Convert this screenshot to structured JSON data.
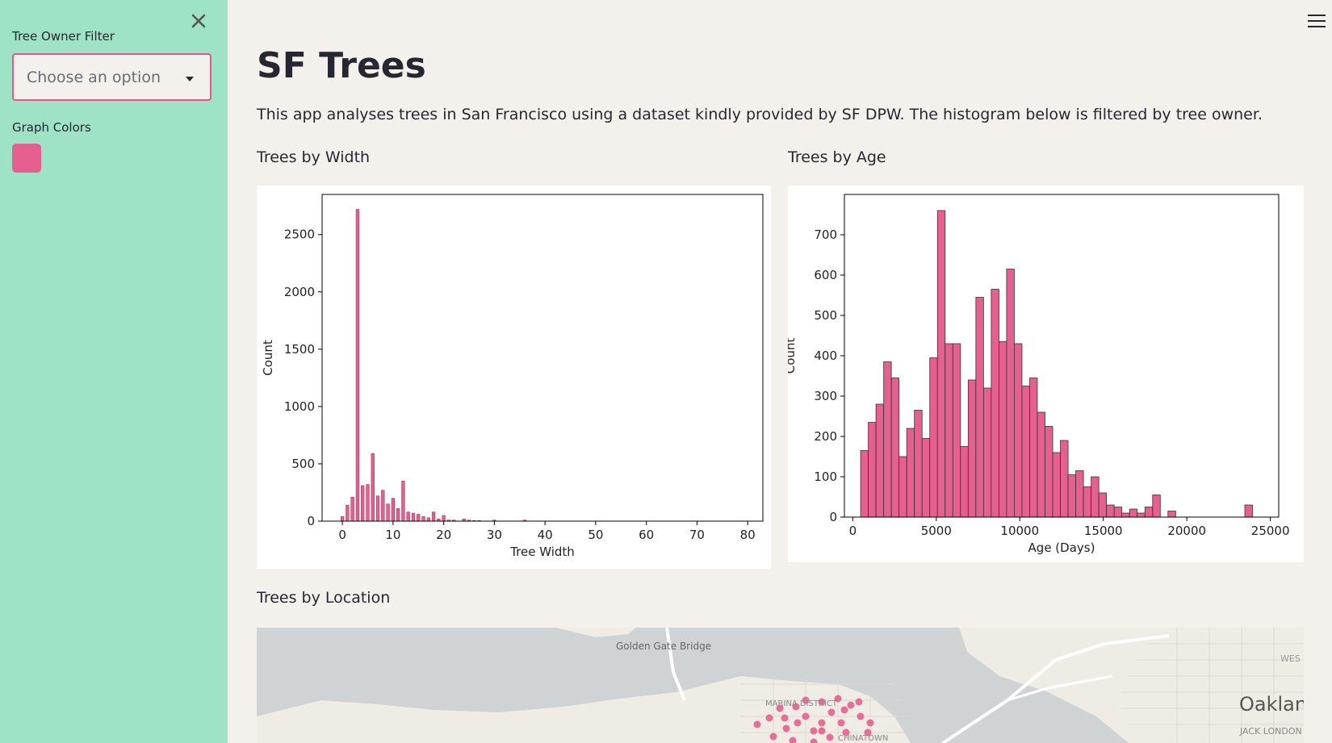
{
  "sidebar": {
    "filter_label": "Tree Owner Filter",
    "filter_placeholder": "Choose an option",
    "colors_label": "Graph Colors",
    "selected_color": "#e5608e",
    "sidebar_color": "#9ee3c6"
  },
  "main": {
    "title": "SF Trees",
    "description": "This app analyses trees in San Francisco using a dataset kindly provided by SF DPW. The histogram below is filtered by tree owner.",
    "width_heading": "Trees by Width",
    "age_heading": "Trees by Age",
    "location_heading": "Trees by Location"
  },
  "map": {
    "labels": [
      "Golden Gate Bridge",
      "MARINA DISTRICT",
      "CHINATOWN",
      "Oaklan",
      "JACK LONDON",
      "WES"
    ],
    "point_color": "#e5608e"
  },
  "chart_data": [
    {
      "type": "bar",
      "title": "",
      "xlabel": "Tree Width",
      "ylabel": "Count",
      "xlim": [
        -4,
        83
      ],
      "ylim": [
        0,
        2850
      ],
      "xticks": [
        0,
        10,
        20,
        30,
        40,
        50,
        60,
        70,
        80
      ],
      "yticks": [
        0,
        500,
        1000,
        1500,
        2000,
        2500
      ],
      "bar_width": 0.6,
      "color": "#e5608e",
      "x": [
        0,
        1,
        2,
        3,
        4,
        5,
        6,
        7,
        8,
        9,
        10,
        11,
        12,
        13,
        14,
        15,
        16,
        17,
        18,
        19,
        20,
        21,
        22,
        24,
        25,
        26,
        27,
        30,
        36
      ],
      "values": [
        40,
        140,
        210,
        2720,
        310,
        320,
        590,
        220,
        270,
        150,
        200,
        110,
        350,
        80,
        70,
        60,
        40,
        30,
        80,
        20,
        50,
        10,
        10,
        20,
        10,
        5,
        5,
        10,
        10
      ]
    },
    {
      "type": "bar",
      "title": "",
      "xlabel": "Age (Days)",
      "ylabel": "Count",
      "xlim": [
        -500,
        25500
      ],
      "ylim": [
        0,
        800
      ],
      "xticks": [
        0,
        5000,
        10000,
        15000,
        20000,
        25000
      ],
      "yticks": [
        0,
        100,
        200,
        300,
        400,
        500,
        600,
        700
      ],
      "bin_width": 460,
      "color": "#e5608e",
      "x": [
        470,
        930,
        1390,
        1850,
        2310,
        2770,
        3230,
        3690,
        4150,
        4610,
        5070,
        5530,
        5990,
        6450,
        6910,
        7370,
        7830,
        8290,
        8750,
        9210,
        9670,
        10130,
        10590,
        11050,
        11510,
        11970,
        12430,
        12890,
        13350,
        13810,
        14270,
        14730,
        15190,
        15650,
        16110,
        16570,
        17030,
        17490,
        17950,
        18870,
        23470
      ],
      "values": [
        165,
        235,
        280,
        385,
        345,
        150,
        220,
        265,
        195,
        395,
        760,
        430,
        430,
        175,
        340,
        545,
        320,
        565,
        435,
        615,
        430,
        325,
        345,
        260,
        225,
        160,
        190,
        105,
        115,
        75,
        100,
        60,
        30,
        25,
        10,
        20,
        10,
        25,
        55,
        15,
        30
      ]
    }
  ]
}
